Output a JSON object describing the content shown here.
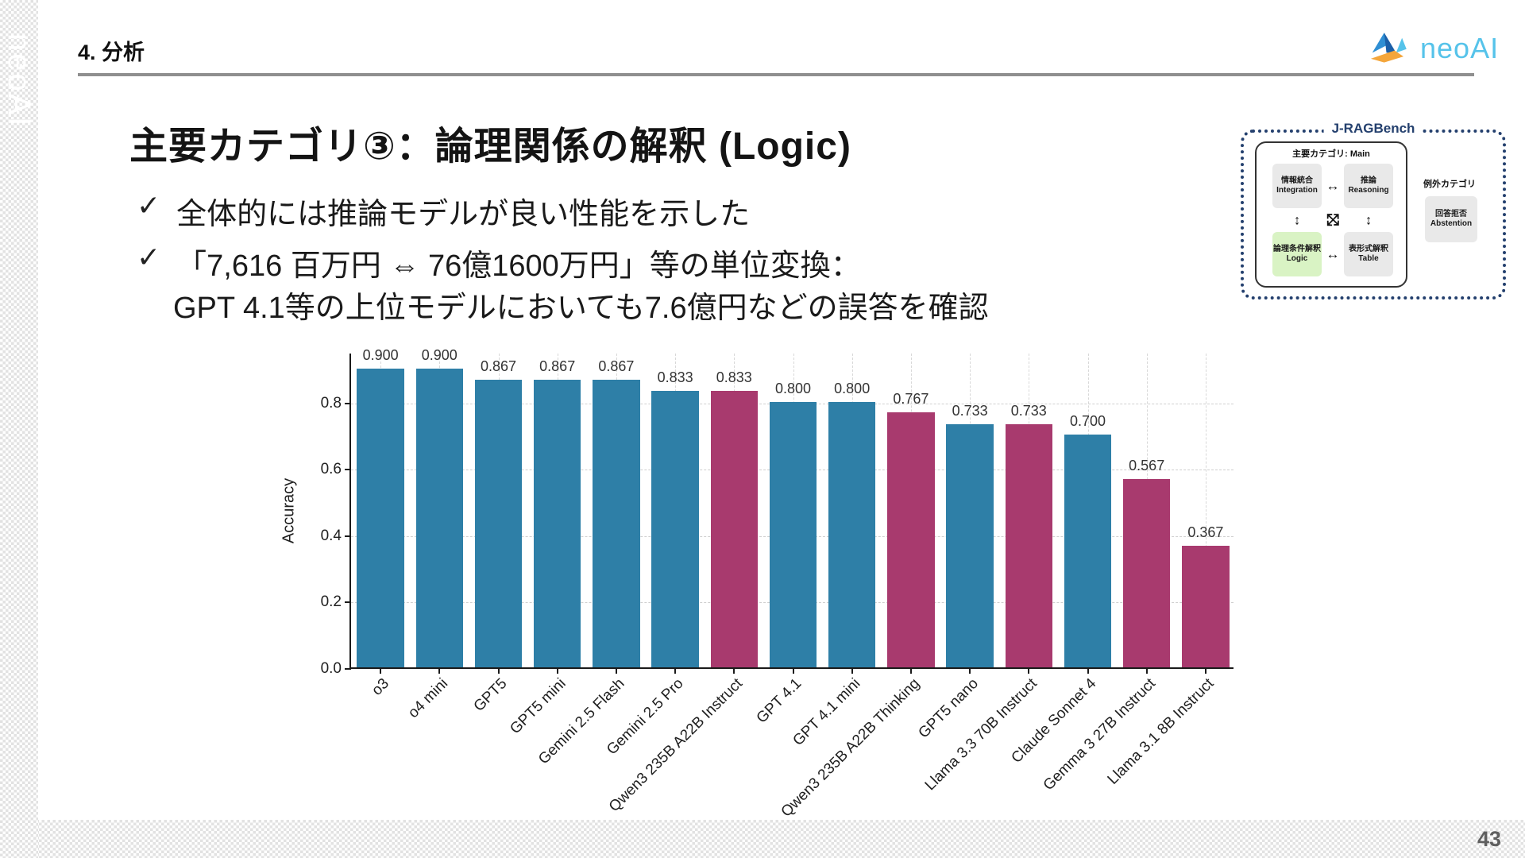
{
  "page": {
    "section_header": "4. 分析",
    "page_number": "43",
    "watermark": "neoAI"
  },
  "logo": {
    "text": "neoAI"
  },
  "content": {
    "title": "主要カテゴリ③：論理関係の解釈 (Logic)",
    "bullet1_check": "✓",
    "bullet1": "全体的には推論モデルが良い性能を示した",
    "bullet2_check": "✓",
    "bullet2_line1": "「7,616 百万円 ⇔ 76億1600万円」等の単位変換：",
    "bullet2_line2": "GPT 4.1等の上位モデルにおいても7.6億円などの誤答を確認"
  },
  "diagram": {
    "title": "J-RAGBench",
    "main_group_label": "主要カテゴリ: Main",
    "nodes": [
      {
        "jp": "情報統合",
        "en": "Integration",
        "highlight": false
      },
      {
        "jp": "推論",
        "en": "Reasoning",
        "highlight": false
      },
      {
        "jp": "論理条件解釈",
        "en": "Logic",
        "highlight": true
      },
      {
        "jp": "表形式解釈",
        "en": "Table",
        "highlight": false
      }
    ],
    "arrows": {
      "horizontal": "↔",
      "vertical": "↕",
      "diag_ne": "⤢",
      "diag_nw": "⤡"
    },
    "exception_label": "例外カテゴリ",
    "exception_node": {
      "jp": "回答拒否",
      "en": "Abstention"
    },
    "colors": {
      "border": "#24406e",
      "node_bg": "#e9e9e9",
      "highlight_bg": "#d9f3c4"
    }
  },
  "chart_data": {
    "type": "bar",
    "title": "",
    "xlabel": "",
    "ylabel": "Accuracy",
    "ylim": [
      0,
      0.95
    ],
    "yticks": [
      0.0,
      0.2,
      0.4,
      0.6,
      0.8
    ],
    "grid": true,
    "legend": false,
    "categories": [
      "o3",
      "o4 mini",
      "GPT5",
      "GPT5 mini",
      "Gemini 2.5 Flash",
      "Gemini 2.5 Pro",
      "Qwen3 235B A22B Instruct",
      "GPT 4.1",
      "GPT 4.1 mini",
      "Qwen3 235B A22B Thinking",
      "GPT5 nano",
      "Llama 3.3 70B Instruct",
      "Claude Sonnet 4",
      "Gemma 3 27B Instruct",
      "Llama 3.1 8B Instruct"
    ],
    "values": [
      0.9,
      0.9,
      0.867,
      0.867,
      0.867,
      0.833,
      0.833,
      0.8,
      0.8,
      0.767,
      0.733,
      0.733,
      0.7,
      0.567,
      0.367
    ],
    "groups": [
      "closed",
      "closed",
      "closed",
      "closed",
      "closed",
      "closed",
      "open",
      "closed",
      "closed",
      "open",
      "closed",
      "open",
      "closed",
      "open",
      "open"
    ],
    "palette": {
      "closed": "#2e7fa7",
      "open": "#a83a6e"
    },
    "value_label_decimals": 3,
    "bar_width_fraction": 0.8
  }
}
